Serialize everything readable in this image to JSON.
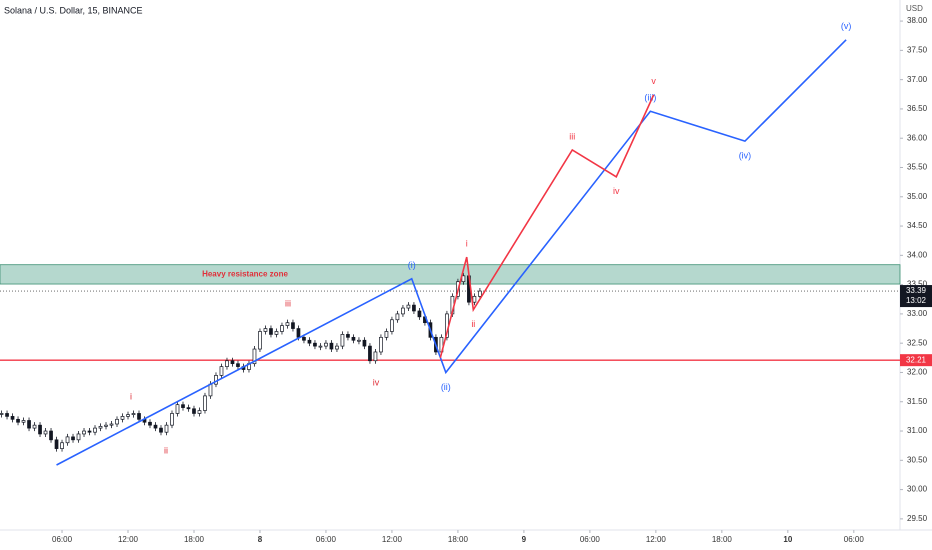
{
  "chart_data": {
    "type": "candlestick",
    "title": "Solana / U.S. Dollar, 15, BINANCE",
    "currency": "USD",
    "color": "#131722",
    "x": [
      0.5,
      1,
      1.5,
      2,
      2.5,
      3,
      3.5,
      4,
      4.5,
      5,
      5.5,
      6,
      6.5,
      7,
      7.5,
      8,
      8.5,
      9,
      9.5,
      10,
      10.5,
      11,
      11.5,
      12,
      12.5,
      13,
      13.5,
      14,
      14.5,
      15,
      15.5,
      16,
      16.5,
      17,
      17.5,
      18,
      18.5,
      19,
      19.5,
      20,
      20.5,
      21,
      21.5,
      22,
      22.5,
      23,
      23.5,
      24,
      24.5,
      25,
      25.5,
      26,
      26.5,
      27,
      27.5,
      28,
      28.5,
      29,
      29.5,
      30,
      30.5,
      31,
      31.5,
      32,
      32.5,
      33,
      33.5,
      34,
      34.5,
      35,
      35.5,
      36,
      36.5,
      37,
      37.5,
      38,
      38.5,
      39,
      39.5,
      40,
      40.5,
      41,
      41.5,
      42,
      42.5,
      43,
      43.5,
      44
    ],
    "values": [
      31.3,
      31.25,
      31.2,
      31.15,
      31.18,
      31.05,
      31.1,
      30.95,
      31.0,
      30.85,
      30.7,
      30.8,
      30.9,
      30.85,
      30.95,
      31.0,
      30.98,
      31.05,
      31.08,
      31.1,
      31.12,
      31.2,
      31.25,
      31.28,
      31.3,
      31.2,
      31.15,
      31.1,
      31.05,
      30.98,
      31.1,
      31.3,
      31.45,
      31.4,
      31.38,
      31.3,
      31.35,
      31.6,
      31.8,
      31.95,
      32.1,
      32.2,
      32.15,
      32.1,
      32.05,
      32.15,
      32.4,
      32.7,
      32.75,
      32.65,
      32.7,
      32.8,
      32.85,
      32.75,
      32.6,
      32.55,
      32.5,
      32.45,
      32.45,
      32.5,
      32.4,
      32.45,
      32.65,
      32.6,
      32.55,
      32.55,
      32.45,
      32.2,
      32.35,
      32.6,
      32.7,
      32.9,
      33.0,
      33.1,
      33.15,
      33.05,
      32.95,
      32.85,
      32.6,
      32.35,
      32.6,
      33.0,
      33.3,
      33.55,
      33.65,
      33.2,
      33.3,
      33.39
    ],
    "xlim": [
      0.36,
      82.2
    ],
    "xticks": [
      {
        "value": 6,
        "label": "06:00"
      },
      {
        "value": 12,
        "label": "12:00"
      },
      {
        "value": 18,
        "label": "18:00"
      },
      {
        "value": 24,
        "label": "8"
      },
      {
        "value": 30,
        "label": "06:00"
      },
      {
        "value": 36,
        "label": "12:00"
      },
      {
        "value": 42,
        "label": "18:00"
      },
      {
        "value": 48,
        "label": "9"
      },
      {
        "value": 54,
        "label": "06:00"
      },
      {
        "value": 60,
        "label": "12:00"
      },
      {
        "value": 66,
        "label": "18:00"
      },
      {
        "value": 72,
        "label": "10"
      },
      {
        "value": 78,
        "label": "06:00"
      }
    ],
    "ylim": [
      29.31,
      38.36
    ],
    "yticks": [
      {
        "value": 29.5,
        "label": "29.50"
      },
      {
        "value": 30,
        "label": "30.00"
      },
      {
        "value": 30.5,
        "label": "30.50"
      },
      {
        "value": 31,
        "label": "31.00"
      },
      {
        "value": 31.5,
        "label": "31.50"
      },
      {
        "value": 32,
        "label": "32.00"
      },
      {
        "value": 32.5,
        "label": "32.50"
      },
      {
        "value": 33,
        "label": "33.00"
      },
      {
        "value": 33.5,
        "label": "33.50"
      },
      {
        "value": 34,
        "label": "34.00"
      },
      {
        "value": 34.5,
        "label": "34.50"
      },
      {
        "value": 35,
        "label": "35.00"
      },
      {
        "value": 35.5,
        "label": "35.50"
      },
      {
        "value": 36,
        "label": "36.00"
      },
      {
        "value": 36.5,
        "label": "36.50"
      },
      {
        "value": 37,
        "label": "37.00"
      },
      {
        "value": 37.5,
        "label": "37.50"
      },
      {
        "value": 38,
        "label": "38.00"
      }
    ],
    "resistance_zone": {
      "label": "Heavy resistance zone",
      "range": [
        33.51,
        33.84
      ],
      "color": "#9ccbbd"
    },
    "support_line": 32.21,
    "support_color": "#f23645",
    "last_price": 33.39,
    "countdown": "13:02",
    "waves": [
      {
        "color": "#2962ff",
        "x": [
          5.5,
          37.8,
          40.9,
          59.5,
          68.1,
          77.3
        ],
        "values": [
          30.42,
          33.6,
          32.0,
          36.46,
          35.95,
          37.68
        ],
        "labels": [
          null,
          "(i)",
          "(ii)",
          "(iii)",
          "(iv)",
          "(v)"
        ]
      },
      {
        "color": "#f23645",
        "x": [
          40.4,
          42.8,
          43.4,
          52.4,
          56.4,
          59.8
        ],
        "values": [
          32.25,
          33.97,
          33.07,
          35.8,
          35.34,
          36.74
        ],
        "labels": [
          null,
          "i",
          "ii",
          "iii",
          "iv",
          "v"
        ]
      }
    ],
    "minor_labels": [
      "i",
      "ii",
      "iii",
      "iv"
    ]
  }
}
